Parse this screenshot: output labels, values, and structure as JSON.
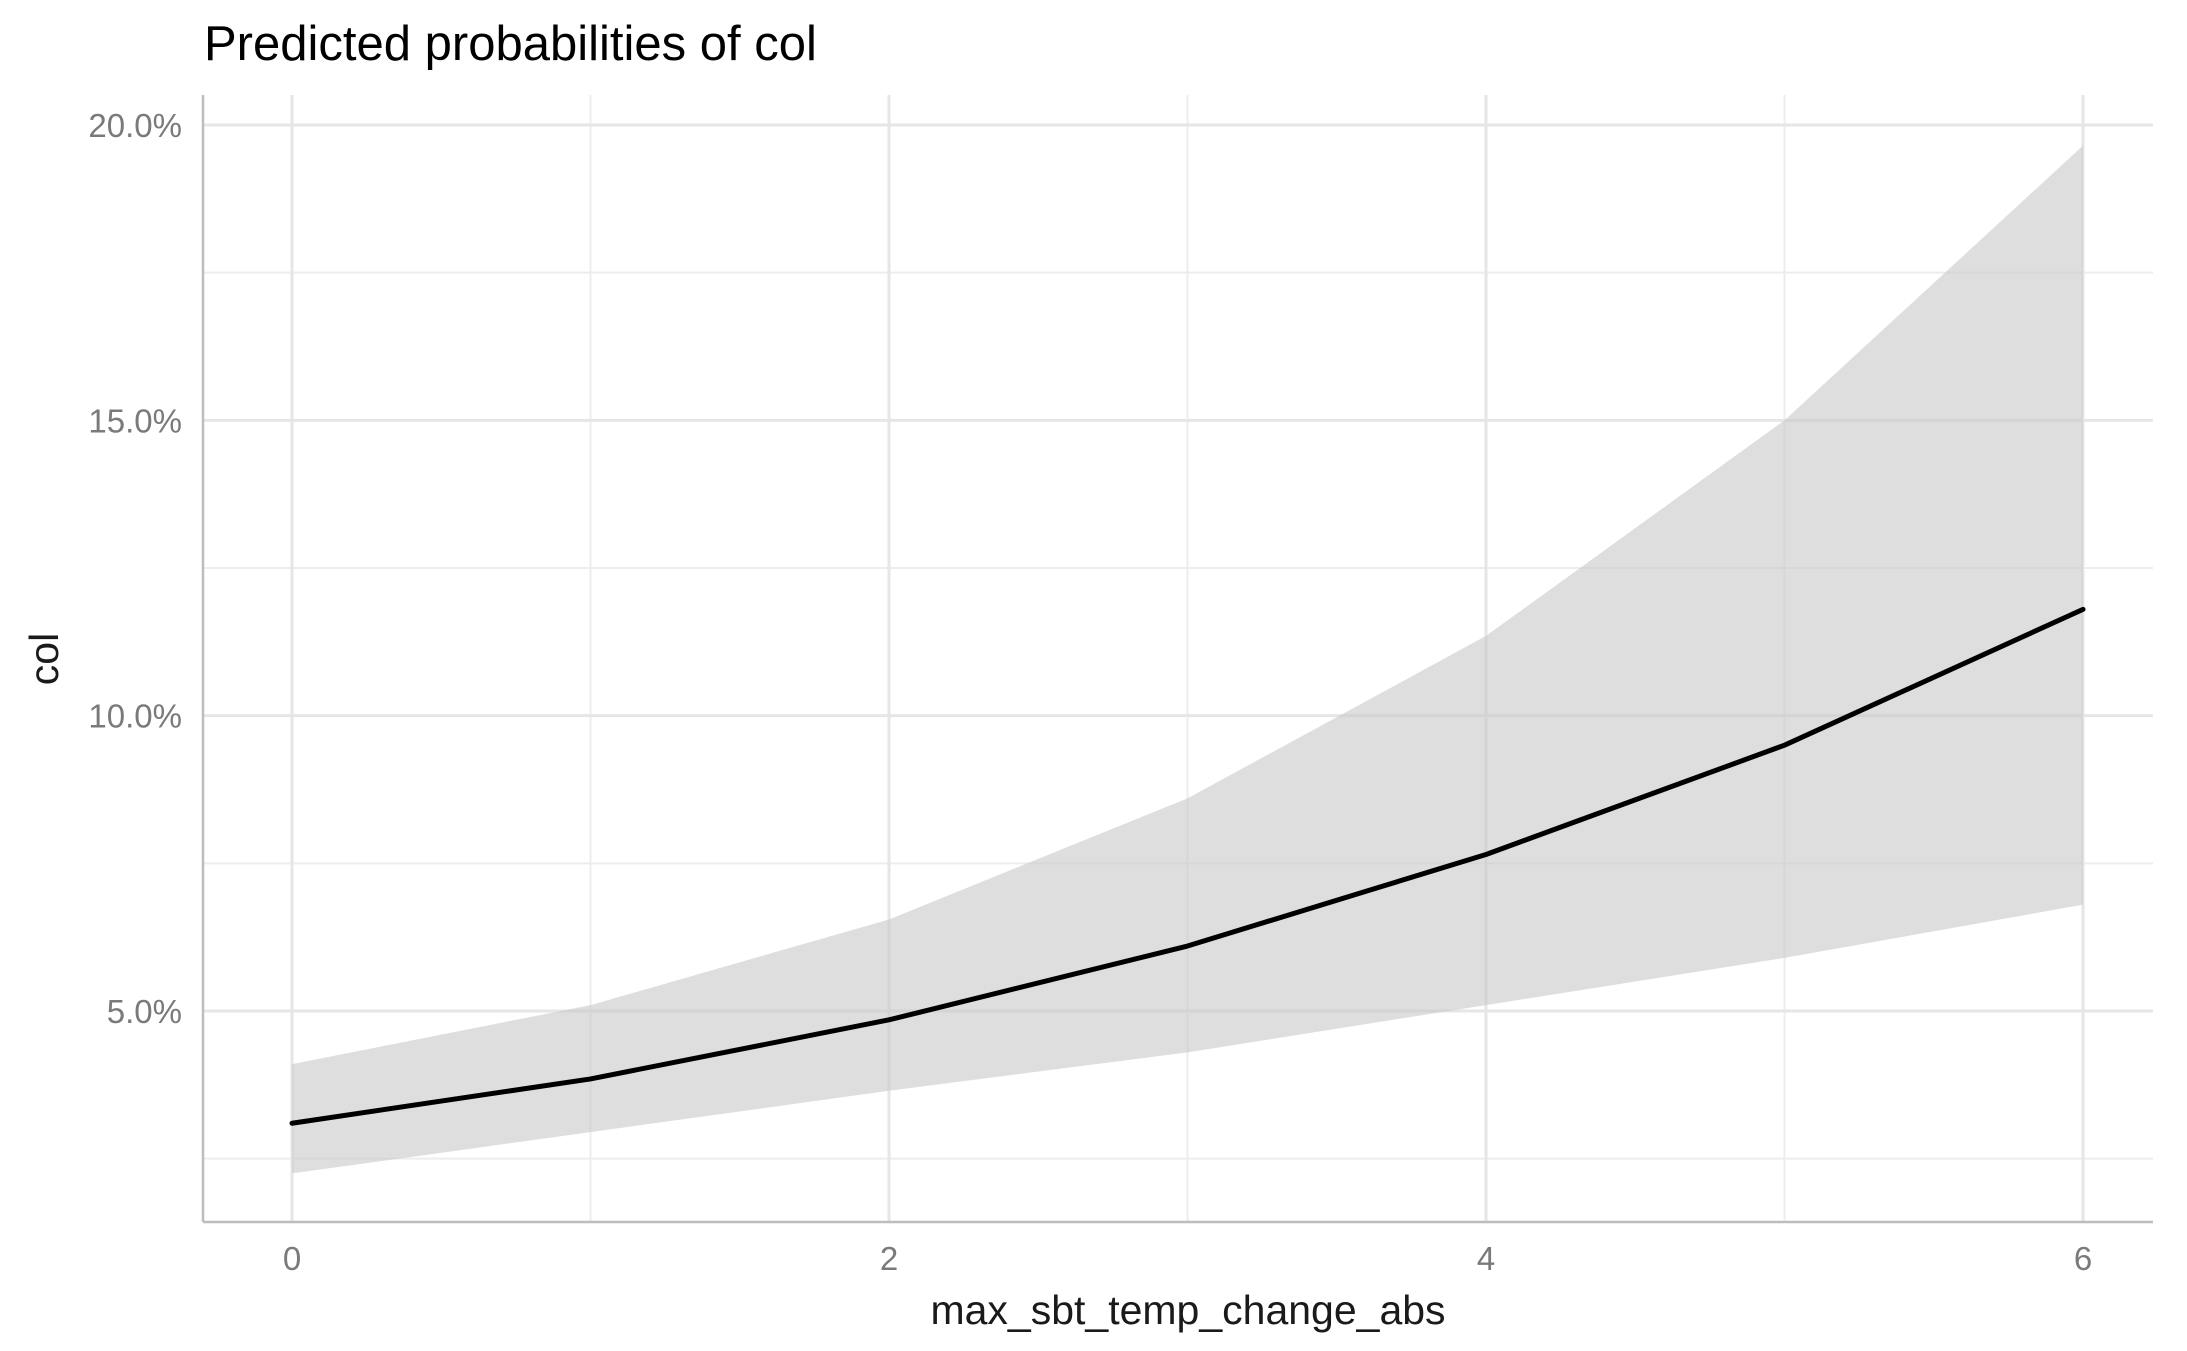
{
  "chart_data": {
    "type": "line",
    "title": "Predicted probabilities of col",
    "xlabel": "max_sbt_temp_change_abs",
    "ylabel": "col",
    "x": [
      0,
      1,
      2,
      3,
      4,
      5,
      6
    ],
    "series": [
      {
        "values": [
          3.1,
          3.85,
          4.85,
          6.1,
          7.65,
          9.5,
          11.8
        ],
        "ci_low": [
          2.25,
          2.95,
          3.65,
          4.3,
          5.1,
          5.9,
          6.8
        ],
        "ci_high": [
          4.1,
          5.1,
          6.55,
          8.6,
          11.35,
          15.0,
          19.65
        ]
      }
    ],
    "xlim": [
      -0.3,
      6.2
    ],
    "ylim": [
      1.0,
      20.5
    ],
    "x_ticks": [
      0,
      2,
      4,
      6
    ],
    "x_tick_labels": [
      "0",
      "2",
      "4",
      "6"
    ],
    "y_ticks": [
      5,
      10,
      15,
      20
    ],
    "y_tick_labels": [
      "5.0%",
      "10.0%",
      "15.0%",
      "20.0%"
    ],
    "x_minor_ticks": [
      1,
      3,
      5
    ],
    "y_minor_ticks": [
      2.5,
      7.5,
      12.5,
      17.5
    ],
    "grid": true,
    "legend": "none",
    "colors": {
      "line": "#000000",
      "band": "#c8c8c8",
      "grid": "#e6e6e6",
      "tick_text": "#7a7a7a"
    }
  }
}
